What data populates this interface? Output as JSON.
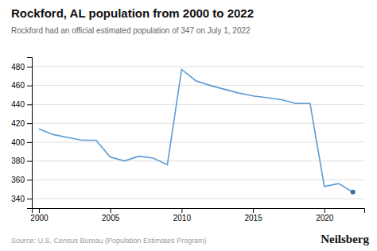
{
  "chart_data": {
    "type": "line",
    "title": "Rockford, AL population from 2000 to 2022",
    "subtitle": "Rockford had an official estimated population of 347 on July 1, 2022",
    "source": "Source: U.S. Census Bureau (Population Estimates Program)",
    "annotations": [
      "Neilsberg"
    ],
    "x": [
      2000,
      2001,
      2002,
      2003,
      2004,
      2005,
      2006,
      2007,
      2008,
      2009,
      2010,
      2011,
      2012,
      2013,
      2014,
      2015,
      2016,
      2017,
      2018,
      2019,
      2020,
      2021,
      2022
    ],
    "values": [
      414,
      408,
      405,
      402,
      402,
      384,
      380,
      385,
      383,
      376,
      477,
      465,
      460,
      456,
      452,
      449,
      447,
      445,
      441,
      441,
      353,
      356,
      347
    ],
    "color": "#5b9bd5",
    "xlim": [
      1999.5,
      2022.8
    ],
    "xticks": [
      2000,
      2005,
      2010,
      2015,
      2020
    ],
    "ylim": [
      330,
      490
    ],
    "yticks": [
      340,
      360,
      380,
      400,
      420,
      440,
      460,
      480
    ],
    "grid": true
  }
}
